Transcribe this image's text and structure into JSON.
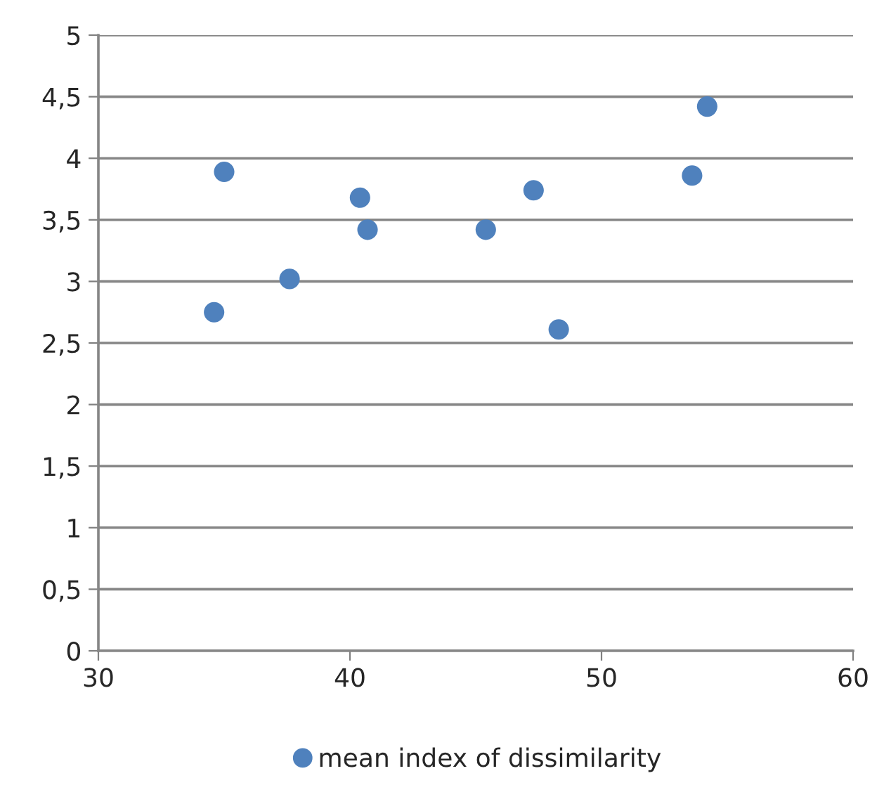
{
  "chart_data": {
    "type": "scatter",
    "series": [
      {
        "name": "mean index of dissimilarity",
        "color": "#4f81bd",
        "x": [
          34.6,
          35.0,
          37.6,
          40.4,
          40.7,
          45.4,
          47.3,
          48.3,
          53.6,
          54.2
        ],
        "values": [
          2.75,
          3.89,
          3.02,
          3.68,
          3.42,
          3.42,
          3.74,
          2.61,
          3.86,
          4.42
        ]
      }
    ],
    "xlim": [
      30,
      60
    ],
    "xticks": [
      30,
      40,
      50,
      60
    ],
    "ylim": [
      0,
      5
    ],
    "yticks": [
      0,
      {
        "value": 0.5,
        "label": "0,5"
      },
      1,
      {
        "value": 1.5,
        "label": "1,5"
      },
      2,
      {
        "value": 2.5,
        "label": "2,5"
      },
      3,
      {
        "value": 3.5,
        "label": "3,5"
      },
      4,
      {
        "value": 4.5,
        "label": "4,5"
      },
      5
    ],
    "grid": "y",
    "legend": "bottom",
    "marker": "circle"
  }
}
